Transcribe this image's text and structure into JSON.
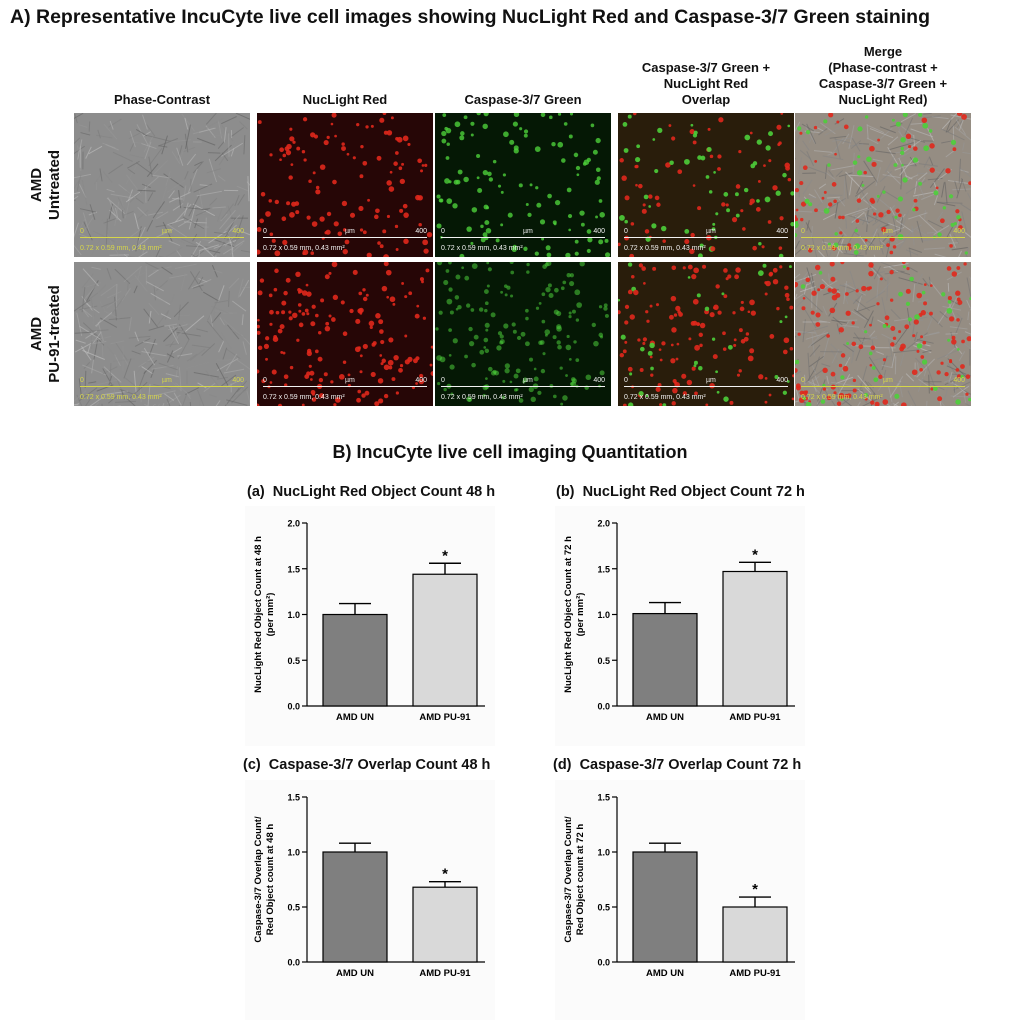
{
  "section_a": {
    "title": "A)   Representative IncuCyte live cell images showing NucLight Red and Caspase-3/7 Green staining",
    "columns": [
      {
        "lines": [
          "Phase-Contrast"
        ]
      },
      {
        "lines": [
          "NucLight Red"
        ]
      },
      {
        "lines": [
          "Caspase-3/7 Green"
        ]
      },
      {
        "lines": [
          "Caspase-3/7 Green +",
          "NucLight Red",
          "Overlap"
        ]
      },
      {
        "lines": [
          "Merge",
          "(Phase-contrast +",
          "Caspase-3/7 Green +",
          "NucLight Red)"
        ]
      }
    ],
    "rows": [
      {
        "lines": [
          "AMD",
          "Untreated"
        ]
      },
      {
        "lines": [
          "AMD",
          "PU-91-treated"
        ]
      }
    ],
    "scale_bar": {
      "start": "0",
      "unit": "µm",
      "end": "400",
      "caption": "0.72 x 0.59 mm, 0.43 mm²"
    },
    "colors": {
      "phase": "#8d8d8d",
      "red_channel": "#e0281c",
      "green_channel": "#4ccf3a",
      "scale_phase": "#d6d64a",
      "scale_fluor": "#f2f2f2"
    }
  },
  "section_b": {
    "title": "B)  IncuCyte live cell imaging Quantitation"
  },
  "chart_data": [
    {
      "type": "bar",
      "panel": "(a)",
      "title": "NucLight Red Object Count 48 h",
      "ylabel_lines": [
        "NucLight Red Object Count at 48 h",
        "(per mm²)"
      ],
      "categories": [
        "AMD UN",
        "AMD PU-91"
      ],
      "values": [
        1.0,
        1.44
      ],
      "errors": [
        0.12,
        0.12
      ],
      "significance": [
        "",
        "*"
      ],
      "ylim": [
        0.0,
        2.0
      ],
      "yticks": [
        "0.0",
        "0.5",
        "1.0",
        "1.5",
        "2.0"
      ],
      "colors": [
        "#7f7f7f",
        "#d9d9d9"
      ]
    },
    {
      "type": "bar",
      "panel": "(b)",
      "title": "NucLight Red Object Count 72 h",
      "ylabel_lines": [
        "NucLight Red Object Count at 72 h",
        "(per mm²)"
      ],
      "categories": [
        "AMD UN",
        "AMD PU-91"
      ],
      "values": [
        1.01,
        1.47
      ],
      "errors": [
        0.12,
        0.1
      ],
      "significance": [
        "",
        "*"
      ],
      "ylim": [
        0.0,
        2.0
      ],
      "yticks": [
        "0.0",
        "0.5",
        "1.0",
        "1.5",
        "2.0"
      ],
      "colors": [
        "#7f7f7f",
        "#d9d9d9"
      ]
    },
    {
      "type": "bar",
      "panel": "(c)",
      "title": "Caspase-3/7 Overlap Count 48 h",
      "ylabel_lines": [
        "Caspase-3/7 Overlap Count/",
        "Red Object count at 48 h"
      ],
      "categories": [
        "AMD UN",
        "AMD PU-91"
      ],
      "values": [
        1.0,
        0.68
      ],
      "errors": [
        0.08,
        0.05
      ],
      "significance": [
        "",
        "*"
      ],
      "ylim": [
        0.0,
        1.5
      ],
      "yticks": [
        "0.0",
        "0.5",
        "1.0",
        "1.5"
      ],
      "colors": [
        "#7f7f7f",
        "#d9d9d9"
      ]
    },
    {
      "type": "bar",
      "panel": "(d)",
      "title": "Caspase-3/7 Overlap Count 72 h",
      "ylabel_lines": [
        "Caspase-3/7 Overlap Count/",
        "Red Object count at 72 h"
      ],
      "categories": [
        "AMD UN",
        "AMD PU-91"
      ],
      "values": [
        1.0,
        0.5
      ],
      "errors": [
        0.08,
        0.09
      ],
      "significance": [
        "",
        "*"
      ],
      "ylim": [
        0.0,
        1.5
      ],
      "yticks": [
        "0.0",
        "0.5",
        "1.0",
        "1.5"
      ],
      "colors": [
        "#7f7f7f",
        "#d9d9d9"
      ]
    }
  ]
}
